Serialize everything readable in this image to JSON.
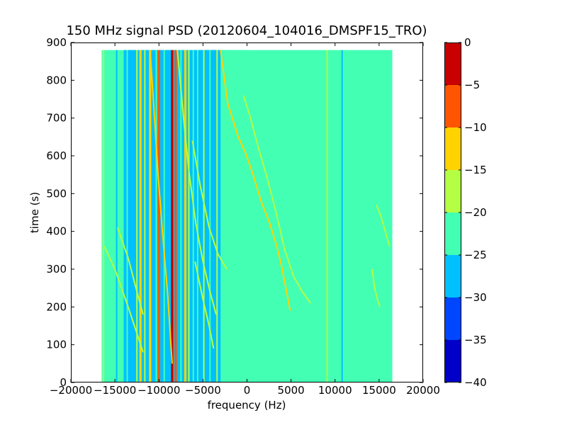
{
  "chart_data": {
    "type": "heatmap",
    "title": "150 MHz signal PSD (20120604_104016_DMSPF15_TRO)",
    "xlabel": "frequency (Hz)",
    "ylabel": "time (s)",
    "xlim": [
      -20000,
      20000
    ],
    "ylim": [
      0,
      900
    ],
    "x_ticks": [
      -20000,
      -15000,
      -10000,
      -5000,
      0,
      5000,
      10000,
      15000,
      20000
    ],
    "x_tick_labels": [
      "−20000",
      "−15000",
      "−10000",
      "−5000",
      "0",
      "5000",
      "10000",
      "15000",
      "20000"
    ],
    "y_ticks": [
      0,
      100,
      200,
      300,
      400,
      500,
      600,
      700,
      800,
      900
    ],
    "y_tick_labels": [
      "0",
      "100",
      "200",
      "300",
      "400",
      "500",
      "600",
      "700",
      "800",
      "900"
    ],
    "data_extent": {
      "x": [
        -16500,
        16500
      ],
      "y": [
        0,
        880
      ]
    },
    "colorbar": {
      "levels": [
        -40,
        -35,
        -30,
        -25,
        -20,
        -15,
        -10,
        -5,
        0
      ],
      "tick_labels": [
        "−40",
        "−35",
        "−30",
        "−25",
        "−20",
        "−15",
        "−10",
        "−5",
        "0"
      ],
      "colors": [
        "#0000c8",
        "#0046ff",
        "#00c0ff",
        "#43ffb4",
        "#b4ff43",
        "#ffd200",
        "#ff5500",
        "#c80000"
      ]
    },
    "background_level_db": -22,
    "regions": [
      {
        "x": [
          -14000,
          -2500
        ],
        "level_db": -27
      },
      {
        "x": [
          -5200,
          -3000
        ],
        "level_db": -28
      },
      {
        "x": [
          -3000,
          0
        ],
        "level_db": -23
      }
    ],
    "vertical_lines": [
      {
        "x": -16300,
        "level_db": -17
      },
      {
        "x": -14800,
        "level_db": -26
      },
      {
        "x": -13600,
        "level_db": -22
      },
      {
        "x": -12500,
        "level_db": -17
      },
      {
        "x": -12100,
        "level_db": -12
      },
      {
        "x": -11600,
        "level_db": -20
      },
      {
        "x": -11000,
        "level_db": -14
      },
      {
        "x": -10300,
        "level_db": -22
      },
      {
        "x": -10000,
        "level_db": -6
      },
      {
        "x": -9400,
        "level_db": -22
      },
      {
        "x": -8500,
        "level_db": -1
      },
      {
        "x": -8100,
        "level_db": -10
      },
      {
        "x": -7500,
        "level_db": -22
      },
      {
        "x": -7000,
        "level_db": -14
      },
      {
        "x": -6600,
        "level_db": -20
      },
      {
        "x": -6100,
        "level_db": -24
      },
      {
        "x": -5600,
        "level_db": -22
      },
      {
        "x": -4900,
        "level_db": -20
      },
      {
        "x": -4200,
        "level_db": -23
      },
      {
        "x": -3400,
        "level_db": -18
      },
      {
        "x": -2700,
        "level_db": -21
      },
      {
        "x": 9100,
        "level_db": -17
      },
      {
        "x": 10800,
        "level_db": -26
      },
      {
        "x": 14600,
        "level_db": -25
      }
    ],
    "doppler_traces": [
      {
        "points": [
          [
            -16200,
            360
          ],
          [
            -15000,
            300
          ],
          [
            -13500,
            200
          ],
          [
            -12500,
            130
          ],
          [
            -11800,
            80
          ]
        ],
        "level_db": -17
      },
      {
        "points": [
          [
            -14700,
            410
          ],
          [
            -13500,
            330
          ],
          [
            -12600,
            250
          ],
          [
            -11800,
            180
          ]
        ],
        "level_db": -18
      },
      {
        "points": [
          [
            -11000,
            880
          ],
          [
            -10500,
            700
          ],
          [
            -10100,
            550
          ],
          [
            -9600,
            400
          ],
          [
            -9000,
            230
          ],
          [
            -8500,
            50
          ]
        ],
        "level_db": -15
      },
      {
        "points": [
          [
            -7900,
            880
          ],
          [
            -7200,
            700
          ],
          [
            -6600,
            560
          ],
          [
            -5800,
            420
          ],
          [
            -5000,
            320
          ],
          [
            -4200,
            240
          ],
          [
            -3500,
            180
          ]
        ],
        "level_db": -17
      },
      {
        "points": [
          [
            -6200,
            640
          ],
          [
            -5300,
            520
          ],
          [
            -4300,
            410
          ],
          [
            -3300,
            340
          ],
          [
            -2300,
            300
          ]
        ],
        "level_db": -18
      },
      {
        "points": [
          [
            -5900,
            320
          ],
          [
            -5000,
            220
          ],
          [
            -4300,
            150
          ],
          [
            -3800,
            90
          ]
        ],
        "level_db": -18
      },
      {
        "points": [
          [
            -3000,
            880
          ],
          [
            -2200,
            740
          ],
          [
            -1000,
            650
          ],
          [
            -200,
            610
          ],
          [
            700,
            550
          ],
          [
            1600,
            480
          ],
          [
            2600,
            420
          ],
          [
            3400,
            360
          ],
          [
            4000,
            300
          ],
          [
            4500,
            240
          ],
          [
            4900,
            190
          ]
        ],
        "level_db": -12
      },
      {
        "points": [
          [
            -400,
            760
          ],
          [
            400,
            700
          ],
          [
            1300,
            620
          ],
          [
            2300,
            540
          ],
          [
            3300,
            450
          ],
          [
            4300,
            350
          ],
          [
            5300,
            280
          ],
          [
            6300,
            240
          ],
          [
            7200,
            210
          ]
        ],
        "level_db": -18
      },
      {
        "points": [
          [
            14700,
            470
          ],
          [
            15200,
            440
          ],
          [
            15700,
            400
          ],
          [
            16200,
            360
          ]
        ],
        "level_db": -17
      },
      {
        "points": [
          [
            14200,
            300
          ],
          [
            14500,
            250
          ],
          [
            14800,
            220
          ],
          [
            15100,
            200
          ]
        ],
        "level_db": -18
      }
    ]
  }
}
